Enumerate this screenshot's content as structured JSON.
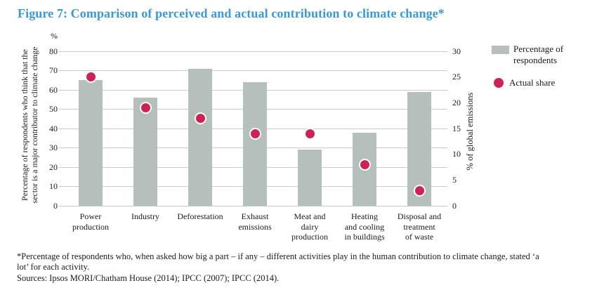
{
  "title": "Figure 7: Comparison of perceived and actual contribution to climate change*",
  "colors": {
    "title_blue": "#3a98d6",
    "bar_fill": "#b5bfbc",
    "dot_fill": "#ce2256",
    "gridline": "#c9cccb",
    "text": "#1a1a1a"
  },
  "chart_data": {
    "type": "bar",
    "categories": [
      "Power production",
      "Industry",
      "Deforestation",
      "Exhaust emissions",
      "Meat and dairy production",
      "Heating and cooling in buildings",
      "Disposal and treatment of waste"
    ],
    "category_lines": [
      [
        "Power",
        "production"
      ],
      [
        "Industry"
      ],
      [
        "Deforestation"
      ],
      [
        "Exhaust",
        "emissions"
      ],
      [
        "Meat and",
        "dairy",
        "production"
      ],
      [
        "Heating",
        "and cooling",
        "in buildings"
      ],
      [
        "Disposal and",
        "treatment",
        "of waste"
      ]
    ],
    "series": [
      {
        "name": "Percentage of respondents",
        "type": "bar",
        "axis": "left",
        "values": [
          65,
          56,
          71,
          64,
          29,
          38,
          59
        ]
      },
      {
        "name": "Actual share",
        "type": "scatter",
        "axis": "right",
        "values": [
          25,
          19,
          17,
          14,
          14,
          8,
          3
        ]
      }
    ],
    "left_axis": {
      "unit": "%",
      "label_lines": [
        "Percentage of respondents who think that the",
        "sector is a major contributor to climate change"
      ],
      "ticks": [
        0,
        10,
        20,
        30,
        40,
        50,
        60,
        70,
        80
      ],
      "range": [
        0,
        80
      ]
    },
    "right_axis": {
      "label": "% of global emissions",
      "ticks": [
        0,
        5,
        10,
        15,
        20,
        25,
        30
      ],
      "range": [
        0,
        30
      ]
    },
    "legend": {
      "position": "right",
      "items": [
        {
          "label": "Percentage of respondents",
          "marker": "bar-swatch"
        },
        {
          "label": "Actual share",
          "marker": "dot"
        }
      ]
    },
    "grid": "horizontal"
  },
  "footnote": "*Percentage of respondents who, when asked how big a part – if any – different activities play in the human contribution to climate change, stated ‘a lot’ for each activity.",
  "sources": "Sources: Ipsos MORI/Chatham House (2014); IPCC (2007); IPCC (2014)."
}
